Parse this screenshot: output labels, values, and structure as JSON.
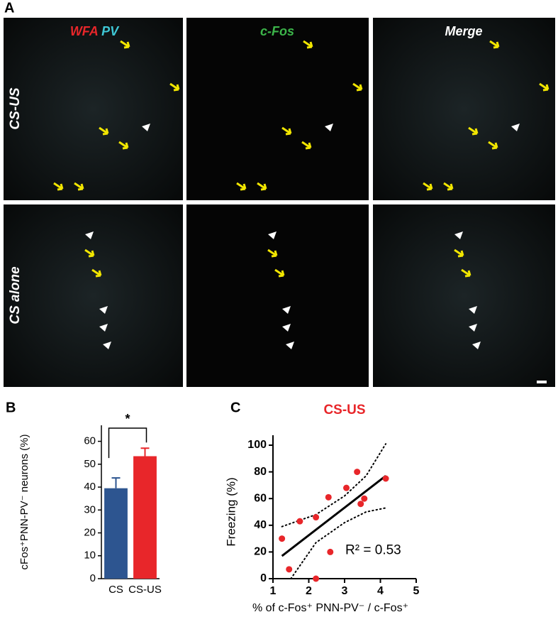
{
  "panel_a": {
    "label": "A",
    "column_titles": [
      [
        {
          "text": "WFA",
          "color": "#e8262a"
        },
        {
          "text": "PV",
          "color": "#3fc8d6"
        }
      ],
      [
        {
          "text": "c-Fos",
          "color": "#3cb54a"
        }
      ],
      [
        {
          "text": "Merge",
          "color": "#ffffff"
        }
      ]
    ],
    "row_titles": [
      "CS-US",
      "CS alone"
    ]
  },
  "chart_data": [
    {
      "type": "bar",
      "panel_label": "B",
      "y_label": "cFos⁺PNN-PV⁻ neurons (%)",
      "categories": [
        "CS",
        "CS-US"
      ],
      "values": [
        39.5,
        53.5
      ],
      "errors": [
        4.5,
        3.5
      ],
      "colors": [
        "#2d5590",
        "#e8262a"
      ],
      "ylim": [
        0,
        67
      ],
      "yticks": [
        0,
        10,
        20,
        30,
        40,
        50,
        60
      ],
      "significance": "*"
    },
    {
      "type": "scatter",
      "panel_label": "C",
      "title": "CS-US",
      "title_color": "#e8262a",
      "x_label": "% of c-Fos⁺ PNN-PV⁻ / c-Fos⁺",
      "y_label": "Freezing (%)",
      "x": [
        1.25,
        1.45,
        1.75,
        2.2,
        2.2,
        2.55,
        2.6,
        3.05,
        3.35,
        3.45,
        3.55,
        4.15
      ],
      "values": [
        30,
        7,
        43,
        46,
        0,
        61,
        20,
        68,
        80,
        56,
        60,
        75
      ],
      "color": "#e8262a",
      "fit": {
        "x": [
          1.25,
          4.15
        ],
        "values": [
          17,
          77
        ]
      },
      "upper_band": {
        "x": [
          1.25,
          2.2,
          3.0,
          3.6,
          4.15
        ],
        "values": [
          39,
          48,
          62,
          77,
          101
        ]
      },
      "lower_band": {
        "x": [
          1.5,
          2.2,
          3.0,
          3.6,
          4.15
        ],
        "values": [
          0,
          27,
          42,
          50,
          53
        ]
      },
      "annotation": "R² = 0.53",
      "xlim": [
        1,
        5
      ],
      "ylim": [
        0,
        100
      ],
      "xticks": [
        1,
        2,
        3,
        4,
        5
      ],
      "yticks": [
        0,
        20,
        40,
        60,
        80,
        100
      ]
    }
  ]
}
